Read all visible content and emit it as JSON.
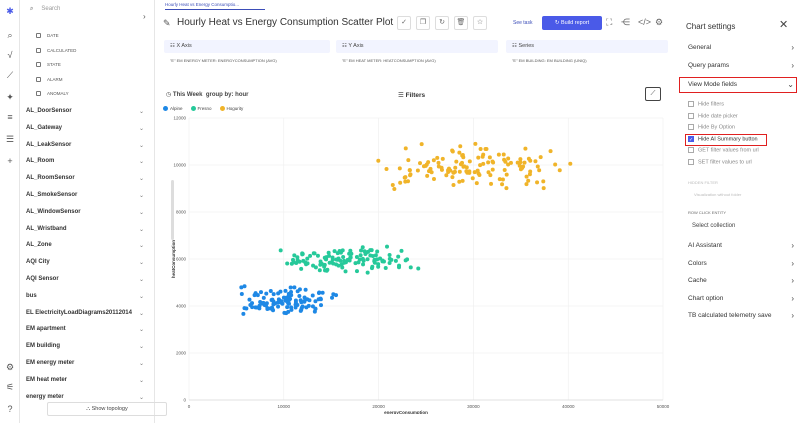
{
  "tab_title": "Hourly Heat vs Energy Consumptio...",
  "page_title": "Hourly Heat vs Energy Consumption Scatter Plot",
  "search_placeholder": "Search",
  "left_sub_items": [
    "DATE",
    "CALCULATED",
    "STATE",
    "ALARM",
    "ANOMALY"
  ],
  "entities": [
    "AL_DoorSensor",
    "AL_Gateway",
    "AL_LeakSensor",
    "AL_Room",
    "AL_RoomSensor",
    "AL_SmokeSensor",
    "AL_WindowSensor",
    "AL_Wristband",
    "AL_Zone",
    "AQI City",
    "AQI Sensor",
    "bus",
    "EL ElectricityLoadDiagrams20112014",
    "EM apartment",
    "EM building",
    "EM energy meter",
    "EM heat meter",
    "energy meter"
  ],
  "show_topology": "Show topology",
  "see_task": "See task",
  "build_report": "Build report",
  "axes": {
    "x": {
      "label": "X Axis",
      "value": "\"E\" EM ENERGY METER: ENERGYCONSUMPTION (AVG)"
    },
    "y": {
      "label": "Y Axis",
      "value": "\"E\" EM HEAT METER: HEATCONSUMPTION (AVG)"
    },
    "series": {
      "label": "Series",
      "value": "\"E\" EM BUILDING: EM BUILDING (UNIQ)"
    }
  },
  "period": "This Week",
  "group_by_label": "group by:",
  "group_by_value": "hour",
  "filters_label": "Filters",
  "chart_data": {
    "type": "scatter",
    "xlabel": "energyConsumption",
    "ylabel": "heatConsumption",
    "xlim": [
      0,
      50000
    ],
    "ylim": [
      0,
      12000
    ],
    "x_ticks": [
      "0",
      "10000",
      "20000",
      "30000",
      "40000",
      "50000"
    ],
    "y_ticks": [
      "0",
      "2000",
      "4000",
      "6000",
      "8000",
      "10000",
      "12000"
    ],
    "series": [
      {
        "name": "Alpine",
        "color": "#1e88e5",
        "x_range": [
          4500,
          16500
        ],
        "y_range": [
          3600,
          4900
        ]
      },
      {
        "name": "Fresno",
        "color": "#26c99a",
        "x_range": [
          8500,
          24500
        ],
        "y_range": [
          5400,
          6600
        ]
      },
      {
        "name": "Hogurity",
        "color": "#f0b429",
        "x_range": [
          19500,
          41000
        ],
        "y_range": [
          8900,
          11000
        ]
      }
    ]
  },
  "settings": {
    "title": "Chart settings",
    "sections_top": [
      "General",
      "Query params",
      "View Mode fields"
    ],
    "checkboxes": [
      {
        "label": "Hide filters",
        "checked": false
      },
      {
        "label": "Hide date picker",
        "checked": false
      },
      {
        "label": "Hide By Option",
        "checked": false
      },
      {
        "label": "Hide AI Summary button",
        "checked": true
      },
      {
        "label": "GET filter values from url",
        "checked": false
      },
      {
        "label": "SET filter values to url",
        "checked": false
      }
    ],
    "hidden_label": "HIDDEN FILTER",
    "visualization_label": "Visualization without folder",
    "row_click": "ROW CLICK ENTITY",
    "select_collection": "Select collection",
    "sections_bottom": [
      "AI Assistant",
      "Colors",
      "Cache",
      "Chart option",
      "TB calculated telemetry save"
    ]
  }
}
